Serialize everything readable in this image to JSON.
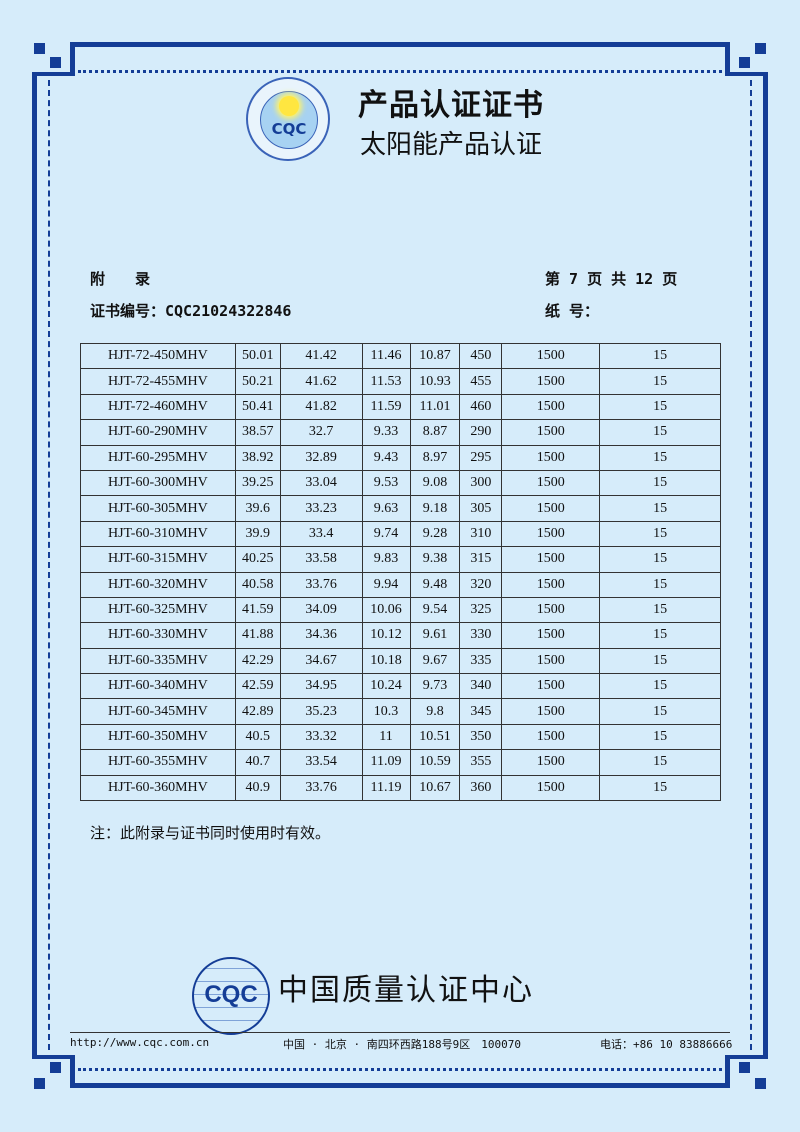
{
  "header": {
    "seal_text": "CQC",
    "seal_ring_top": "太阳能产品认证",
    "seal_ring_bottom": "中国质量认证中心",
    "title": "产品认证证书",
    "subtitle": "太阳能产品认证"
  },
  "meta": {
    "appendix": "附　　录",
    "page": "第 7 页 共 12 页",
    "cert_no": "证书编号：CQC21024322846",
    "paper_no": "纸 号："
  },
  "table": {
    "rows": [
      [
        "HJT-72-450MHV",
        "50.01",
        "41.42",
        "11.46",
        "10.87",
        "450",
        "1500",
        "15"
      ],
      [
        "HJT-72-455MHV",
        "50.21",
        "41.62",
        "11.53",
        "10.93",
        "455",
        "1500",
        "15"
      ],
      [
        "HJT-72-460MHV",
        "50.41",
        "41.82",
        "11.59",
        "11.01",
        "460",
        "1500",
        "15"
      ],
      [
        "HJT-60-290MHV",
        "38.57",
        "32.7",
        "9.33",
        "8.87",
        "290",
        "1500",
        "15"
      ],
      [
        "HJT-60-295MHV",
        "38.92",
        "32.89",
        "9.43",
        "8.97",
        "295",
        "1500",
        "15"
      ],
      [
        "HJT-60-300MHV",
        "39.25",
        "33.04",
        "9.53",
        "9.08",
        "300",
        "1500",
        "15"
      ],
      [
        "HJT-60-305MHV",
        "39.6",
        "33.23",
        "9.63",
        "9.18",
        "305",
        "1500",
        "15"
      ],
      [
        "HJT-60-310MHV",
        "39.9",
        "33.4",
        "9.74",
        "9.28",
        "310",
        "1500",
        "15"
      ],
      [
        "HJT-60-315MHV",
        "40.25",
        "33.58",
        "9.83",
        "9.38",
        "315",
        "1500",
        "15"
      ],
      [
        "HJT-60-320MHV",
        "40.58",
        "33.76",
        "9.94",
        "9.48",
        "320",
        "1500",
        "15"
      ],
      [
        "HJT-60-325MHV",
        "41.59",
        "34.09",
        "10.06",
        "9.54",
        "325",
        "1500",
        "15"
      ],
      [
        "HJT-60-330MHV",
        "41.88",
        "34.36",
        "10.12",
        "9.61",
        "330",
        "1500",
        "15"
      ],
      [
        "HJT-60-335MHV",
        "42.29",
        "34.67",
        "10.18",
        "9.67",
        "335",
        "1500",
        "15"
      ],
      [
        "HJT-60-340MHV",
        "42.59",
        "34.95",
        "10.24",
        "9.73",
        "340",
        "1500",
        "15"
      ],
      [
        "HJT-60-345MHV",
        "42.89",
        "35.23",
        "10.3",
        "9.8",
        "345",
        "1500",
        "15"
      ],
      [
        "HJT-60-350MHV",
        "40.5",
        "33.32",
        "11",
        "10.51",
        "350",
        "1500",
        "15"
      ],
      [
        "HJT-60-355MHV",
        "40.7",
        "33.54",
        "11.09",
        "10.59",
        "355",
        "1500",
        "15"
      ],
      [
        "HJT-60-360MHV",
        "40.9",
        "33.76",
        "11.19",
        "10.67",
        "360",
        "1500",
        "15"
      ]
    ]
  },
  "note": "注：此附录与证书同时使用时有效。",
  "footer": {
    "logo_text": "CQC",
    "org": "中国质量认证中心",
    "url": "http://www.cqc.com.cn",
    "address": "中国 · 北京 · 南四环西路188号9区　100070",
    "phone": "电话：+86 10 83886666"
  },
  "colors": {
    "border": "#143d96",
    "background": "#d6ecfa"
  }
}
